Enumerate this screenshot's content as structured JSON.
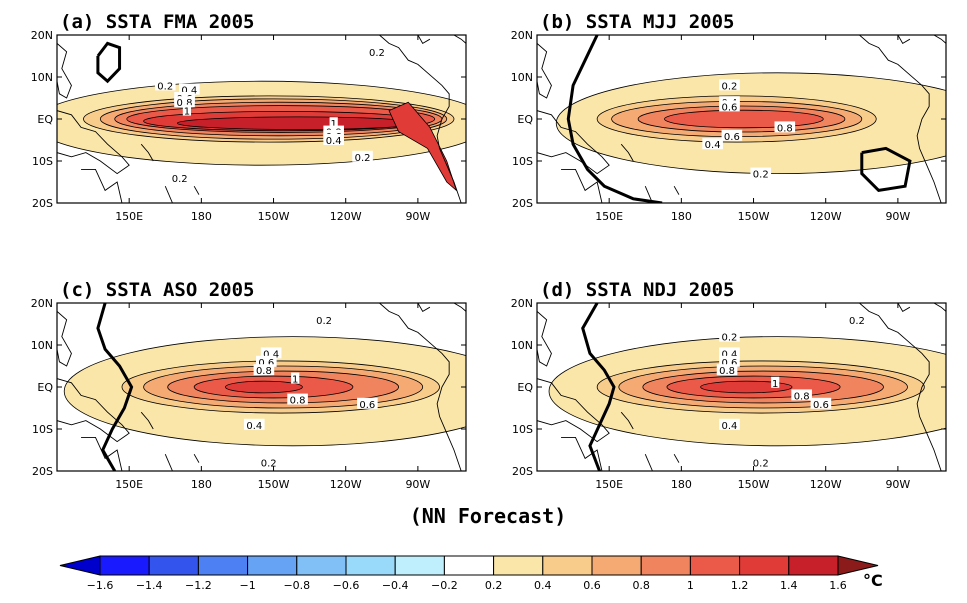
{
  "figure": {
    "subtitle": "(NN Forecast)",
    "unit": "°C"
  },
  "axes": {
    "lat_ticks": [
      "20N",
      "10N",
      "EQ",
      "10S",
      "20S"
    ],
    "lon_ticks": [
      "150E",
      "180",
      "150W",
      "120W",
      "90W"
    ]
  },
  "panels": [
    {
      "title": "(a) SSTA FMA 2005",
      "labels": [
        {
          "text": "0.2",
          "lon": 253,
          "lat": 16
        },
        {
          "text": "0.2",
          "lon": 165,
          "lat": 8
        },
        {
          "text": "0.4",
          "lon": 175,
          "lat": 7
        },
        {
          "text": "0.6",
          "lon": 173,
          "lat": 5
        },
        {
          "text": "0.8",
          "lon": 173,
          "lat": 4
        },
        {
          "text": "1",
          "lon": 174,
          "lat": 2
        },
        {
          "text": "1",
          "lon": 235,
          "lat": -1
        },
        {
          "text": "0.8",
          "lon": 235,
          "lat": -3
        },
        {
          "text": "0.6",
          "lon": 235,
          "lat": -4
        },
        {
          "text": "0.4",
          "lon": 235,
          "lat": -5
        },
        {
          "text": "0.2",
          "lon": 247,
          "lat": -9
        },
        {
          "text": "0.2",
          "lon": 171,
          "lat": -14
        }
      ]
    },
    {
      "title": "(b) SSTA MJJ 2005",
      "labels": [
        {
          "text": "0.2",
          "lon": 200,
          "lat": 8
        },
        {
          "text": "0.4",
          "lon": 200,
          "lat": 4
        },
        {
          "text": "0.6",
          "lon": 200,
          "lat": 3
        },
        {
          "text": "0.6",
          "lon": 201,
          "lat": -4
        },
        {
          "text": "0.8",
          "lon": 223,
          "lat": -2
        },
        {
          "text": "0.4",
          "lon": 193,
          "lat": -6
        },
        {
          "text": "0.2",
          "lon": 213,
          "lat": -13
        }
      ]
    },
    {
      "title": "(c) SSTA ASO 2005",
      "labels": [
        {
          "text": "0.2",
          "lon": 231,
          "lat": 16
        },
        {
          "text": "0.4",
          "lon": 209,
          "lat": 8
        },
        {
          "text": "0.6",
          "lon": 207,
          "lat": 6
        },
        {
          "text": "0.8",
          "lon": 206,
          "lat": 4
        },
        {
          "text": "1",
          "lon": 219,
          "lat": 2
        },
        {
          "text": "0.8",
          "lon": 220,
          "lat": -3
        },
        {
          "text": "0.6",
          "lon": 249,
          "lat": -4
        },
        {
          "text": "0.4",
          "lon": 202,
          "lat": -9
        },
        {
          "text": "0.2",
          "lon": 208,
          "lat": -18
        }
      ]
    },
    {
      "title": "(d) SSTA NDJ 2005",
      "labels": [
        {
          "text": "0.2",
          "lon": 253,
          "lat": 16
        },
        {
          "text": "0.2",
          "lon": 200,
          "lat": 12
        },
        {
          "text": "0.4",
          "lon": 200,
          "lat": 8
        },
        {
          "text": "0.6",
          "lon": 200,
          "lat": 6
        },
        {
          "text": "0.8",
          "lon": 199,
          "lat": 4
        },
        {
          "text": "1",
          "lon": 219,
          "lat": 1
        },
        {
          "text": "0.8",
          "lon": 230,
          "lat": -2
        },
        {
          "text": "0.6",
          "lon": 238,
          "lat": -4
        },
        {
          "text": "0.4",
          "lon": 200,
          "lat": -9
        },
        {
          "text": "0.2",
          "lon": 213,
          "lat": -18
        }
      ]
    }
  ],
  "colorbar": {
    "labels": [
      "-1.6",
      "-1.4",
      "-1.2",
      "-1",
      "-0.8",
      "-0.6",
      "-0.4",
      "-0.2",
      "0.2",
      "0.4",
      "0.6",
      "0.8",
      "1",
      "1.2",
      "1.4",
      "1.6"
    ],
    "colors": [
      "#1a1aff",
      "#3355ee",
      "#4d80f2",
      "#66a3f5",
      "#80c0f7",
      "#99d9fa",
      "#bfeefc",
      "#ffffff",
      "#fbe6aa",
      "#f8cc8a",
      "#f5aa73",
      "#f0845e",
      "#eb5a48",
      "#e13b38",
      "#c8202a"
    ],
    "low_arrow_color": "#0000cc",
    "high_arrow_color": "#8b1a1a"
  }
}
